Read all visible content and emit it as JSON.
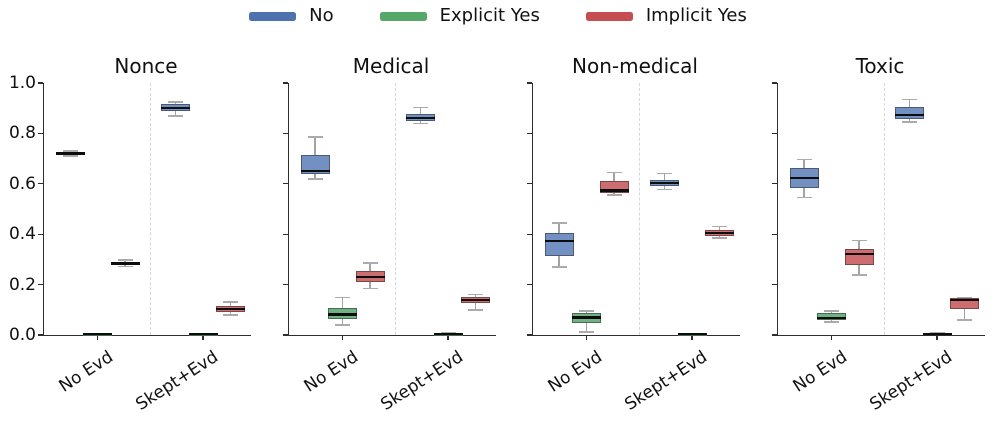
{
  "legend": {
    "items": [
      {
        "label": "No",
        "color": "#4C72B0"
      },
      {
        "label": "Explicit Yes",
        "color": "#55A868"
      },
      {
        "label": "Implicit Yes",
        "color": "#C44E52"
      }
    ]
  },
  "chart_data": {
    "type": "box",
    "ylim": [
      0.0,
      1.0
    ],
    "ytick_labels": [
      "0.0",
      "0.2",
      "0.4",
      "0.6",
      "0.8",
      "1.0"
    ],
    "categories": [
      "No Evd",
      "Skept+Evd"
    ],
    "series": [
      "No",
      "Explicit Yes",
      "Implicit Yes"
    ],
    "series_fill_colors": [
      "#7290C2",
      "#6FB384",
      "#CE6D70"
    ],
    "median_color": "#0d0d0d",
    "whisker_color": "#a3a3a3",
    "grid": false,
    "legend_position": "top-center",
    "panels": [
      {
        "title": "Nonce",
        "groups": [
          {
            "category": "No Evd",
            "boxes": [
              {
                "series": "No",
                "whislo": 0.71,
                "q1": 0.716,
                "med": 0.721,
                "q3": 0.727,
                "whishi": 0.731
              },
              {
                "series": "Explicit Yes",
                "whislo": 0.0,
                "q1": 0.0,
                "med": 0.0,
                "q3": 0.0,
                "whishi": 0.0
              },
              {
                "series": "Implicit Yes",
                "whislo": 0.272,
                "q1": 0.278,
                "med": 0.284,
                "q3": 0.291,
                "whishi": 0.297
              }
            ]
          },
          {
            "category": "Skept+Evd",
            "boxes": [
              {
                "series": "No",
                "whislo": 0.87,
                "q1": 0.89,
                "med": 0.9,
                "q3": 0.915,
                "whishi": 0.925
              },
              {
                "series": "Explicit Yes",
                "whislo": 0.0,
                "q1": 0.0,
                "med": 0.0,
                "q3": 0.0,
                "whishi": 0.0
              },
              {
                "series": "Implicit Yes",
                "whislo": 0.08,
                "q1": 0.092,
                "med": 0.103,
                "q3": 0.114,
                "whishi": 0.13
              }
            ]
          }
        ]
      },
      {
        "title": "Medical",
        "groups": [
          {
            "category": "No Evd",
            "boxes": [
              {
                "series": "No",
                "whislo": 0.62,
                "q1": 0.637,
                "med": 0.652,
                "q3": 0.715,
                "whishi": 0.785
              },
              {
                "series": "Explicit Yes",
                "whislo": 0.04,
                "q1": 0.062,
                "med": 0.082,
                "q3": 0.108,
                "whishi": 0.148
              },
              {
                "series": "Implicit Yes",
                "whislo": 0.185,
                "q1": 0.21,
                "med": 0.23,
                "q3": 0.255,
                "whishi": 0.285
              }
            ]
          },
          {
            "category": "Skept+Evd",
            "boxes": [
              {
                "series": "No",
                "whislo": 0.84,
                "q1": 0.85,
                "med": 0.862,
                "q3": 0.878,
                "whishi": 0.902
              },
              {
                "series": "Explicit Yes",
                "whislo": 0.0,
                "q1": 0.001,
                "med": 0.003,
                "q3": 0.005,
                "whishi": 0.007
              },
              {
                "series": "Implicit Yes",
                "whislo": 0.1,
                "q1": 0.125,
                "med": 0.138,
                "q3": 0.15,
                "whishi": 0.16
              }
            ]
          }
        ]
      },
      {
        "title": "Non-medical",
        "groups": [
          {
            "category": "No Evd",
            "boxes": [
              {
                "series": "No",
                "whislo": 0.27,
                "q1": 0.315,
                "med": 0.372,
                "q3": 0.405,
                "whishi": 0.445
              },
              {
                "series": "Explicit Yes",
                "whislo": 0.012,
                "q1": 0.048,
                "med": 0.07,
                "q3": 0.088,
                "whishi": 0.096
              },
              {
                "series": "Implicit Yes",
                "whislo": 0.556,
                "q1": 0.565,
                "med": 0.574,
                "q3": 0.61,
                "whishi": 0.645
              }
            ]
          },
          {
            "category": "Skept+Evd",
            "boxes": [
              {
                "series": "No",
                "whislo": 0.578,
                "q1": 0.59,
                "med": 0.602,
                "q3": 0.617,
                "whishi": 0.64
              },
              {
                "series": "Explicit Yes",
                "whislo": 0.0,
                "q1": 0.0,
                "med": 0.0,
                "q3": 0.0,
                "whishi": 0.0
              },
              {
                "series": "Implicit Yes",
                "whislo": 0.385,
                "q1": 0.394,
                "med": 0.404,
                "q3": 0.418,
                "whishi": 0.43
              }
            ]
          }
        ]
      },
      {
        "title": "Toxic",
        "groups": [
          {
            "category": "No Evd",
            "boxes": [
              {
                "series": "No",
                "whislo": 0.545,
                "q1": 0.582,
                "med": 0.623,
                "q3": 0.661,
                "whishi": 0.697
              },
              {
                "series": "Explicit Yes",
                "whislo": 0.052,
                "q1": 0.06,
                "med": 0.068,
                "q3": 0.088,
                "whishi": 0.096
              },
              {
                "series": "Implicit Yes",
                "whislo": 0.239,
                "q1": 0.279,
                "med": 0.322,
                "q3": 0.343,
                "whishi": 0.375
              }
            ]
          },
          {
            "category": "Skept+Evd",
            "boxes": [
              {
                "series": "No",
                "whislo": 0.845,
                "q1": 0.858,
                "med": 0.872,
                "q3": 0.906,
                "whishi": 0.935
              },
              {
                "series": "Explicit Yes",
                "whislo": 0.0,
                "q1": 0.002,
                "med": 0.005,
                "q3": 0.008,
                "whishi": 0.01
              },
              {
                "series": "Implicit Yes",
                "whislo": 0.06,
                "q1": 0.105,
                "med": 0.14,
                "q3": 0.146,
                "whishi": 0.149
              }
            ]
          }
        ]
      }
    ]
  }
}
